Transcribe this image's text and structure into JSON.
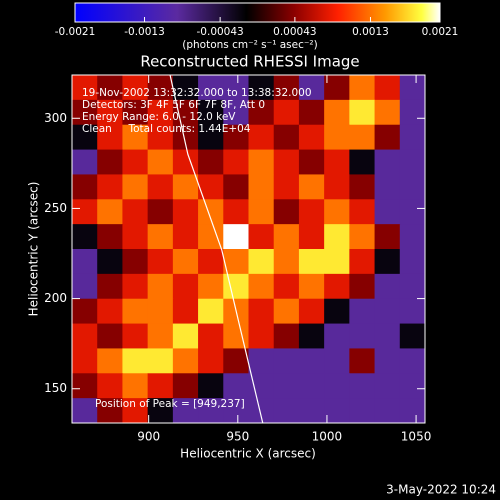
{
  "chart_data": {
    "type": "heatmap",
    "title": "Reconstructed RHESSI Image",
    "xlabel": "Heliocentric X (arcsec)",
    "ylabel": "Heliocentric Y (arcsec)",
    "annotations": [
      "19-Nov-2002 13:32:32.000 to 13:38:32.000",
      "Detectors: 3F 4F 5F 6F 7F 8F, Att 0",
      "Energy Range: 6.0 - 12.0 keV",
      "Clean     Total counts: 1.44E+04"
    ],
    "peak_label": "Position of Peak = [949,237]",
    "timestamp": "3-May-2022 10:24",
    "xlim": [
      857,
      1055
    ],
    "ylim": [
      131,
      324
    ],
    "xticks": [
      900,
      950,
      1000,
      1050
    ],
    "yticks": [
      150,
      200,
      250,
      300
    ],
    "colorbar": {
      "lim": [
        -0.0021,
        0.0021
      ],
      "ticks": [
        -0.0021,
        -0.0013,
        -0.00043,
        0.00043,
        0.0013,
        0.0021
      ],
      "label": "(photons cm⁻² s⁻¹ asec⁻²)"
    },
    "colorscale": [
      {
        "stop": 0,
        "color": "#0000ff"
      },
      {
        "stop": 0.28,
        "color": "#5b2aa0"
      },
      {
        "stop": 0.47,
        "color": "#000000"
      },
      {
        "stop": 0.6,
        "color": "#8b0000"
      },
      {
        "stop": 0.72,
        "color": "#ff2000"
      },
      {
        "stop": 0.85,
        "color": "#ff9900"
      },
      {
        "stop": 0.95,
        "color": "#ffff40"
      },
      {
        "stop": 1,
        "color": "#ffffff"
      }
    ],
    "limb": {
      "color": "#ffffff",
      "x": [
        912,
        922,
        941,
        951,
        964
      ],
      "y": [
        324,
        280,
        227,
        185,
        131
      ]
    },
    "z": [
      [
        0.0008,
        0.0004,
        0.0008,
        0.0004,
        -0.0002,
        -0.0009,
        -0.0009,
        -0.0002,
        0.0004,
        -0.0009,
        0.0004,
        0.0013,
        0.0008,
        -0.0009
      ],
      [
        0.0004,
        0.0008,
        0.0004,
        0.0008,
        0.0004,
        -0.0002,
        -0.0009,
        0.0004,
        0.0008,
        0.0004,
        0.0013,
        0.0018,
        0.0013,
        -0.0009
      ],
      [
        -0.0002,
        0.0008,
        0.0013,
        0.0008,
        0.0004,
        -0.0002,
        0.0004,
        0.0008,
        0.0004,
        0.0008,
        0.0013,
        0.0013,
        0.0004,
        -0.0009
      ],
      [
        -0.0009,
        0.0004,
        0.0008,
        0.0013,
        0.0008,
        0.0004,
        0.0008,
        0.0013,
        0.0008,
        0.0004,
        0.0008,
        -0.0002,
        -0.0009,
        -0.0009
      ],
      [
        0.0004,
        0.0008,
        0.0013,
        0.0008,
        0.0013,
        0.0008,
        0.0004,
        0.0013,
        0.0008,
        0.0013,
        0.0008,
        0.0004,
        -0.0009,
        -0.0009
      ],
      [
        0.0008,
        0.0013,
        0.0008,
        0.0004,
        0.0008,
        0.0013,
        0.0008,
        0.0013,
        0.0004,
        0.0008,
        0.0013,
        0.0008,
        -0.0009,
        -0.0009
      ],
      [
        -0.0002,
        0.0004,
        0.0008,
        0.0013,
        0.0008,
        0.0013,
        0.0021,
        0.0008,
        0.0013,
        0.0008,
        0.0018,
        0.0013,
        0.0004,
        -0.0009
      ],
      [
        -0.0009,
        -0.0002,
        0.0004,
        0.0008,
        0.0013,
        0.0008,
        0.0013,
        0.0018,
        0.0013,
        0.0018,
        0.0018,
        0.0008,
        -0.0002,
        -0.0009
      ],
      [
        -0.0009,
        0.0004,
        0.0008,
        0.0013,
        0.0008,
        0.0013,
        0.0018,
        0.0013,
        0.0008,
        0.0013,
        0.0008,
        0.0004,
        -0.0009,
        -0.0009
      ],
      [
        0.0004,
        0.0008,
        0.0013,
        0.0013,
        0.0008,
        0.0018,
        0.0013,
        0.0008,
        0.0013,
        0.0008,
        -0.0002,
        -0.0009,
        -0.0009,
        -0.0009
      ],
      [
        0.0008,
        0.0004,
        0.0008,
        0.0013,
        0.0018,
        0.0008,
        0.0013,
        0.0008,
        0.0004,
        -0.0002,
        -0.0009,
        -0.0009,
        -0.0009,
        -0.0002
      ],
      [
        0.0008,
        0.0013,
        0.0018,
        0.0018,
        0.0013,
        0.0008,
        0.0004,
        -0.0009,
        -0.0009,
        -0.0009,
        -0.0009,
        0.0004,
        -0.0009,
        -0.0009
      ],
      [
        0.0004,
        0.0008,
        0.0013,
        0.0008,
        0.0004,
        -0.0002,
        -0.0009,
        -0.0009,
        -0.0009,
        -0.0009,
        -0.0009,
        -0.0009,
        -0.0009,
        -0.0009
      ],
      [
        -0.0009,
        0.0004,
        0.0008,
        -0.0002,
        -0.0009,
        -0.0009,
        -0.0009,
        -0.0009,
        -0.0009,
        -0.0009,
        -0.0009,
        -0.0009,
        -0.0009,
        -0.0009
      ]
    ]
  }
}
